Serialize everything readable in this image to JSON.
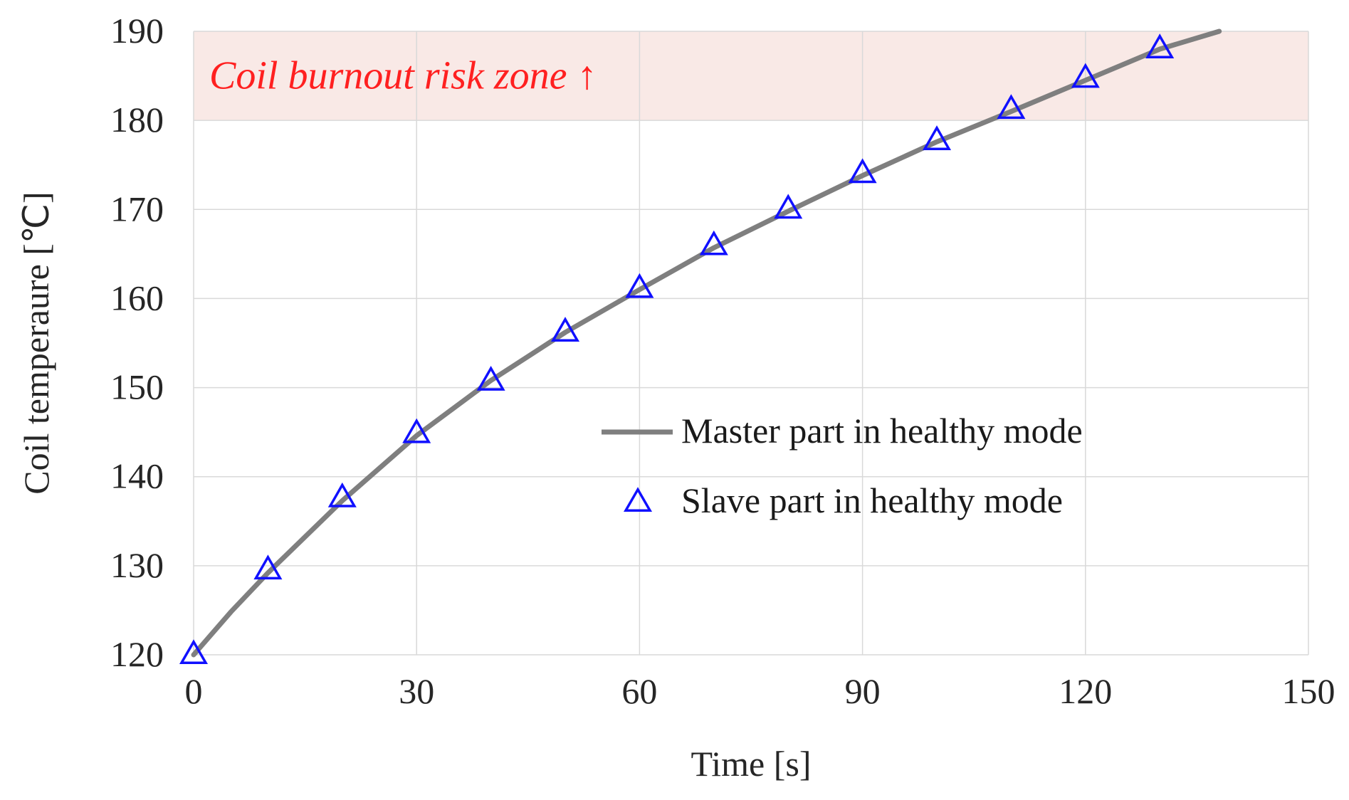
{
  "chart_data": {
    "type": "line",
    "title": "",
    "xlabel": "Time [s]",
    "ylabel": "Coil temperaure [℃]",
    "xlim": [
      0,
      150
    ],
    "ylim": [
      120,
      190
    ],
    "x_ticks": [
      "0",
      "30",
      "60",
      "90",
      "120",
      "150"
    ],
    "y_ticks": [
      "120",
      "130",
      "140",
      "150",
      "160",
      "170",
      "180",
      "190"
    ],
    "grid": true,
    "legend_position": "center-right",
    "annotation": {
      "text": "Coil burnout risk zone ↑",
      "y_from": 180,
      "y_to": 190,
      "color": "#ff2020",
      "band_color": "#f9e9e6"
    },
    "series": [
      {
        "name": "Master part in healthy mode",
        "kind": "line",
        "color": "#7f7f7f",
        "x": [
          0,
          5,
          10,
          20,
          30,
          40,
          50,
          60,
          70,
          80,
          90,
          100,
          110,
          120,
          130,
          138
        ],
        "y": [
          120,
          124.8,
          129.2,
          137.3,
          144.6,
          150.8,
          156.2,
          161.0,
          165.7,
          169.8,
          173.8,
          177.6,
          181.0,
          184.5,
          188.0,
          190.0
        ]
      },
      {
        "name": "Slave part in healthy mode",
        "kind": "scatter",
        "marker": "triangle",
        "color": "#1010ff",
        "x": [
          0,
          10,
          20,
          30,
          40,
          50,
          60,
          70,
          80,
          90,
          100,
          110,
          120,
          130
        ],
        "y": [
          120,
          129.5,
          137.6,
          144.8,
          150.7,
          156.2,
          161.1,
          165.9,
          170.0,
          174.0,
          177.7,
          181.2,
          184.7,
          188.0
        ]
      }
    ]
  }
}
